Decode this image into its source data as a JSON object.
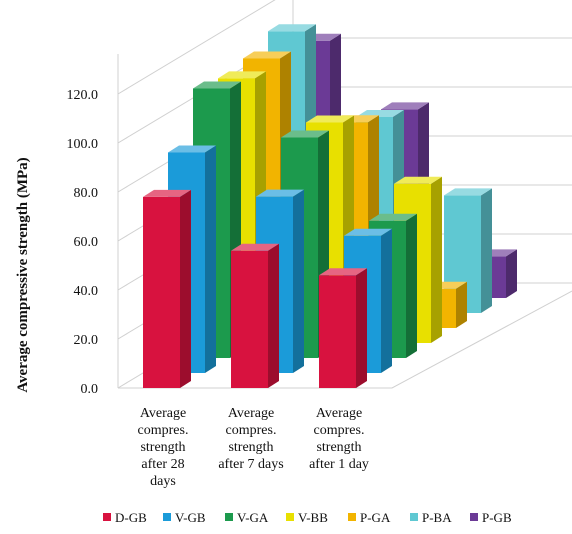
{
  "chart_data": {
    "type": "bar",
    "subtype": "3d-clustered-depth",
    "title": "",
    "ylabel": "Average compressive strength  (MPa)",
    "xlabel": "",
    "ylim": [
      0,
      120
    ],
    "yticks": [
      "0.0",
      "20.0",
      "40.0",
      "60.0",
      "80.0",
      "100.0",
      "120.0"
    ],
    "categories": [
      [
        "Average",
        "compres.",
        "strength",
        "after 28",
        "days"
      ],
      [
        "Average",
        "compres.",
        "strength",
        "after 7 days"
      ],
      [
        "Average",
        "compres.",
        "strength",
        "after 1 day"
      ]
    ],
    "grid": true,
    "legend_position": "bottom",
    "series": [
      {
        "name": "D-GB",
        "color": "#d8123f",
        "values": [
          78,
          56,
          46
        ]
      },
      {
        "name": "V-GB",
        "color": "#1b9bd9",
        "values": [
          90,
          72,
          56
        ]
      },
      {
        "name": "V-GA",
        "color": "#1c9a4d",
        "values": [
          110,
          90,
          56
        ]
      },
      {
        "name": "V-BB",
        "color": "#e8e000",
        "values": [
          108,
          90,
          65
        ]
      },
      {
        "name": "P-GA",
        "color": "#f2b400",
        "values": [
          110,
          84,
          16
        ]
      },
      {
        "name": "P-BA",
        "color": "#5fc8d2",
        "values": [
          115,
          80,
          48
        ]
      },
      {
        "name": "P-GB",
        "color": "#6b3a96",
        "values": [
          105,
          77,
          17
        ]
      }
    ]
  }
}
